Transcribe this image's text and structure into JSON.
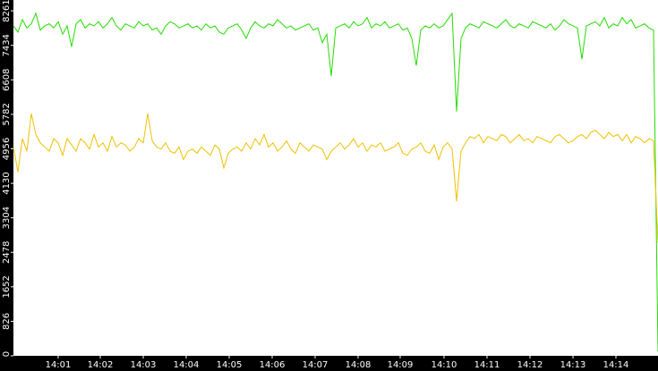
{
  "chart_data": {
    "type": "line",
    "xlim": [
      0,
      144
    ],
    "xticks": [
      {
        "value": 10,
        "label": "14:01"
      },
      {
        "value": 19.4,
        "label": "14:02"
      },
      {
        "value": 29,
        "label": "14:03"
      },
      {
        "value": 38.6,
        "label": "14:04"
      },
      {
        "value": 48.2,
        "label": "14:05"
      },
      {
        "value": 57.8,
        "label": "14:06"
      },
      {
        "value": 67.4,
        "label": "14:07"
      },
      {
        "value": 77,
        "label": "14:08"
      },
      {
        "value": 86.4,
        "label": "14:09"
      },
      {
        "value": 96.2,
        "label": "14:10"
      },
      {
        "value": 105.8,
        "label": "14:11"
      },
      {
        "value": 115.4,
        "label": "14:12"
      },
      {
        "value": 125,
        "label": "14:13"
      },
      {
        "value": 134.6,
        "label": "14:14"
      }
    ],
    "ylim": [
      0,
      8520
    ],
    "yticks": [
      0,
      826,
      1652,
      2478,
      3304,
      4130,
      4956,
      5782,
      6608,
      7434,
      8261
    ],
    "series": [
      {
        "color": "#22dd00",
        "values": [
          7900,
          7750,
          8050,
          7850,
          7950,
          8200,
          7800,
          7900,
          7950,
          7850,
          8000,
          7700,
          7900,
          7400,
          7950,
          8050,
          7850,
          7950,
          7900,
          8000,
          7850,
          7950,
          8100,
          7900,
          7800,
          7950,
          7900,
          7850,
          8000,
          7900,
          7950,
          7800,
          7850,
          7700,
          7900,
          8000,
          7950,
          7850,
          7900,
          7950,
          7850,
          7900,
          7800,
          7950,
          7850,
          7900,
          7750,
          7700,
          7850,
          7900,
          7950,
          7800,
          7600,
          7850,
          8000,
          7900,
          7850,
          7950,
          7900,
          8050,
          7950,
          7850,
          7900,
          7800,
          7850,
          7900,
          7950,
          7800,
          7850,
          7500,
          7700,
          6700,
          7850,
          7900,
          7950,
          7850,
          8000,
          7900,
          7950,
          8100,
          7850,
          7950,
          7900,
          8000,
          7850,
          7900,
          7950,
          7800,
          7850,
          7600,
          6950,
          7800,
          7900,
          7850,
          7950,
          7850,
          7900,
          8050,
          8200,
          5850,
          7600,
          7850,
          7950,
          7900,
          7850,
          8000,
          7950,
          7900,
          7850,
          7950,
          8050,
          7900,
          7850,
          7950,
          7900,
          7850,
          8000,
          7950,
          7900,
          7850,
          7950,
          7800,
          7900,
          8050,
          7950,
          7900,
          7850,
          7100,
          7900,
          7950,
          8000,
          7900,
          8100,
          7850,
          7950,
          7900,
          8100,
          7950,
          8050,
          7850,
          7900,
          7950,
          7850,
          7800,
          100
        ]
      },
      {
        "color": "#f0c000",
        "values": [
          5000,
          4400,
          5200,
          4900,
          5800,
          5300,
          5100,
          5000,
          4900,
          5200,
          5100,
          4800,
          5200,
          5050,
          4900,
          5200,
          5100,
          4950,
          5300,
          5000,
          5100,
          4900,
          5250,
          5000,
          5100,
          5050,
          4900,
          5000,
          5200,
          5100,
          5800,
          5150,
          5000,
          4950,
          5100,
          4900,
          4850,
          5000,
          4700,
          4900,
          4950,
          4850,
          5000,
          4900,
          4800,
          5050,
          4950,
          4500,
          4850,
          4950,
          5000,
          4900,
          5100,
          4950,
          5200,
          5050,
          5300,
          5000,
          5100,
          4900,
          5000,
          5150,
          4950,
          4850,
          5100,
          5000,
          4900,
          5050,
          5000,
          4950,
          4700,
          4900,
          5000,
          5100,
          4950,
          5050,
          5200,
          5000,
          5100,
          4900,
          5050,
          5000,
          5100,
          4900,
          4950,
          5000,
          5100,
          4850,
          4800,
          4950,
          5000,
          5100,
          4900,
          4850,
          5050,
          4700,
          5000,
          5100,
          4950,
          3700,
          4900,
          5100,
          5250,
          5200,
          5300,
          5100,
          5250,
          5200,
          5150,
          5300,
          5250,
          5100,
          5200,
          5300,
          5150,
          5200,
          5100,
          5250,
          5200,
          5150,
          5100,
          5250,
          5300,
          5200,
          5100,
          5150,
          5250,
          5300,
          5200,
          5350,
          5400,
          5300,
          5200,
          5350,
          5250,
          5300,
          5150,
          5300,
          5100,
          5250,
          5200,
          5100,
          5200,
          5150,
          2700
        ]
      }
    ]
  }
}
